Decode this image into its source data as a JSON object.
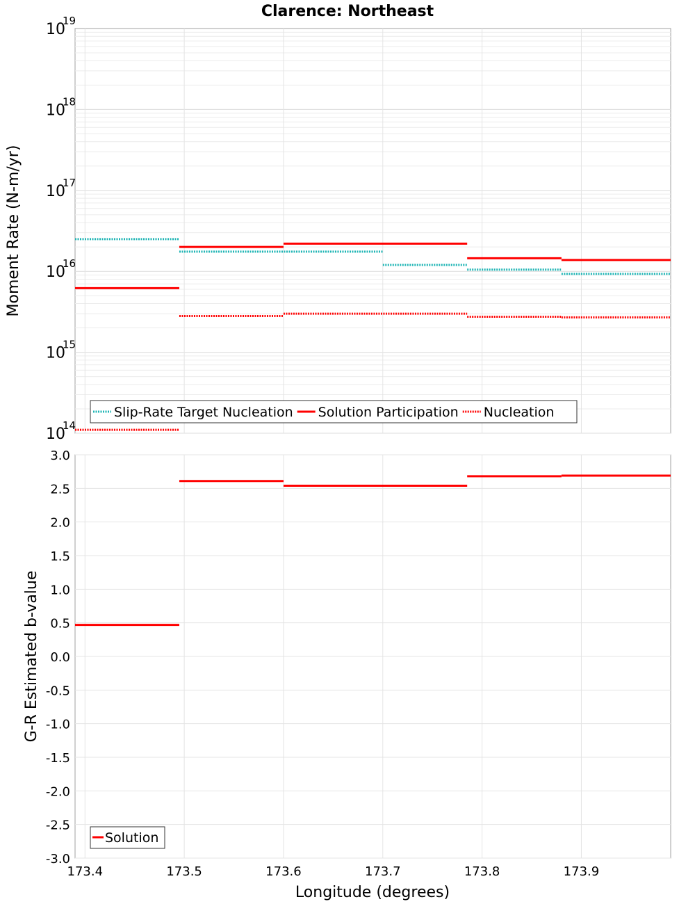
{
  "figure_title": "Clarence: Northeast",
  "colors": {
    "target": "#1fb5b5",
    "solution": "#ff0000",
    "nucleation": "#ff0000"
  },
  "chart_data": [
    {
      "type": "line",
      "scale": "log",
      "step_segments": true,
      "xlabel": "Longitude (degrees)",
      "ylabel": "Moment Rate (N-m/yr)",
      "xlim": [
        173.39,
        173.99
      ],
      "ylim": [
        100000000000000.0,
        1e+19
      ],
      "y_tick_labels": [
        {
          "base": "10",
          "exp": "14"
        },
        {
          "base": "10",
          "exp": "15"
        },
        {
          "base": "10",
          "exp": "16"
        },
        {
          "base": "10",
          "exp": "17"
        },
        {
          "base": "10",
          "exp": "18"
        },
        {
          "base": "10",
          "exp": "19"
        }
      ],
      "grid": true,
      "legend_position": "bottom-left",
      "series": [
        {
          "name": "Slip-Rate Target Nucleation",
          "style": "dotted",
          "color_key": "target",
          "segments": [
            {
              "x": [
                173.39,
                173.495
              ],
              "y": 2.5e+16
            },
            {
              "x": [
                173.495,
                173.7
              ],
              "y": 1.75e+16
            },
            {
              "x": [
                173.7,
                173.785
              ],
              "y": 1.2e+16
            },
            {
              "x": [
                173.785,
                173.88
              ],
              "y": 1.05e+16
            },
            {
              "x": [
                173.88,
                173.99
              ],
              "y": 9300000000000000.0
            }
          ]
        },
        {
          "name": "Solution Participation",
          "style": "solid",
          "color_key": "solution",
          "segments": [
            {
              "x": [
                173.39,
                173.495
              ],
              "y": 6200000000000000.0
            },
            {
              "x": [
                173.495,
                173.6
              ],
              "y": 2e+16
            },
            {
              "x": [
                173.6,
                173.785
              ],
              "y": 2.2e+16
            },
            {
              "x": [
                173.785,
                173.88
              ],
              "y": 1.45e+16
            },
            {
              "x": [
                173.88,
                173.99
              ],
              "y": 1.38e+16
            }
          ]
        },
        {
          "name": "Nucleation",
          "style": "dotted",
          "color_key": "nucleation",
          "segments": [
            {
              "x": [
                173.39,
                173.495
              ],
              "y": 110000000000000.0
            },
            {
              "x": [
                173.495,
                173.6
              ],
              "y": 2800000000000000.0
            },
            {
              "x": [
                173.6,
                173.785
              ],
              "y": 3000000000000000.0
            },
            {
              "x": [
                173.785,
                173.88
              ],
              "y": 2750000000000000.0
            },
            {
              "x": [
                173.88,
                173.99
              ],
              "y": 2700000000000000.0
            }
          ]
        }
      ]
    },
    {
      "type": "line",
      "scale": "linear",
      "step_segments": true,
      "xlabel": "Longitude (degrees)",
      "ylabel": "G-R Estimated b-value",
      "xlim": [
        173.39,
        173.99
      ],
      "ylim": [
        -3.0,
        3.0
      ],
      "x_ticks": [
        "173.4",
        "173.5",
        "173.6",
        "173.7",
        "173.8",
        "173.9"
      ],
      "y_ticks": [
        "-3.0",
        "-2.5",
        "-2.0",
        "-1.5",
        "-1.0",
        "-0.5",
        "0.0",
        "0.5",
        "1.0",
        "1.5",
        "2.0",
        "2.5",
        "3.0"
      ],
      "grid": true,
      "legend_position": "bottom-left",
      "series": [
        {
          "name": "Solution",
          "style": "solid",
          "color_key": "solution",
          "segments": [
            {
              "x": [
                173.39,
                173.495
              ],
              "y": 0.47
            },
            {
              "x": [
                173.495,
                173.6
              ],
              "y": 2.61
            },
            {
              "x": [
                173.6,
                173.785
              ],
              "y": 2.54
            },
            {
              "x": [
                173.785,
                173.88
              ],
              "y": 2.68
            },
            {
              "x": [
                173.88,
                173.99
              ],
              "y": 2.69
            }
          ]
        }
      ]
    }
  ]
}
